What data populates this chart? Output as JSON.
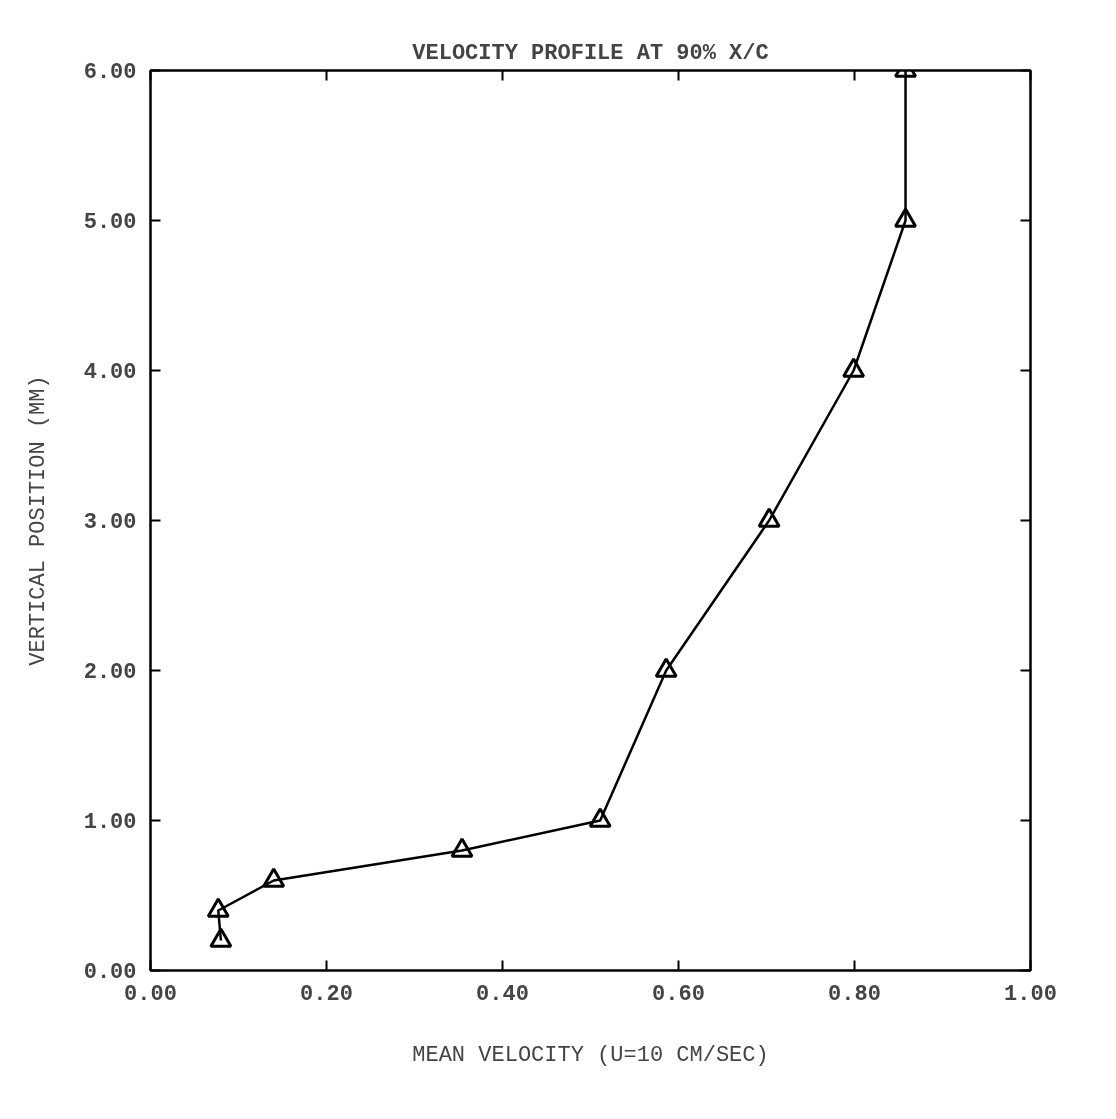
{
  "chart_data": {
    "type": "line",
    "title": "VELOCITY PROFILE AT 90% X/C",
    "xlabel": "MEAN VELOCITY (U=10 CM/SEC)",
    "ylabel": "VERTICAL POSITION (MM)",
    "x": [
      0.08,
      0.077,
      0.14,
      0.354,
      0.511,
      0.586,
      0.703,
      0.799,
      0.858,
      0.858
    ],
    "values": [
      0.2,
      0.4,
      0.6,
      0.8,
      1.0,
      2.0,
      3.0,
      4.0,
      5.0,
      6.0
    ],
    "color": "#000000",
    "marker": "triangle",
    "line_style": "solid",
    "grid": false,
    "xlim": [
      0,
      1
    ],
    "ylim": [
      0,
      6
    ],
    "xticks": [
      {
        "value": 0,
        "label": "0.00"
      },
      {
        "value": 0.2,
        "label": "0.20"
      },
      {
        "value": 0.4,
        "label": "0.40"
      },
      {
        "value": 0.6,
        "label": "0.60"
      },
      {
        "value": 0.8,
        "label": "0.80"
      },
      {
        "value": 1,
        "label": "1.00"
      }
    ],
    "yticks": [
      {
        "value": 0,
        "label": "0.00"
      },
      {
        "value": 1,
        "label": "1.00"
      },
      {
        "value": 2,
        "label": "2.00"
      },
      {
        "value": 3,
        "label": "3.00"
      },
      {
        "value": 4,
        "label": "4.00"
      },
      {
        "value": 5,
        "label": "5.00"
      },
      {
        "value": 6,
        "label": "6.00"
      }
    ]
  }
}
